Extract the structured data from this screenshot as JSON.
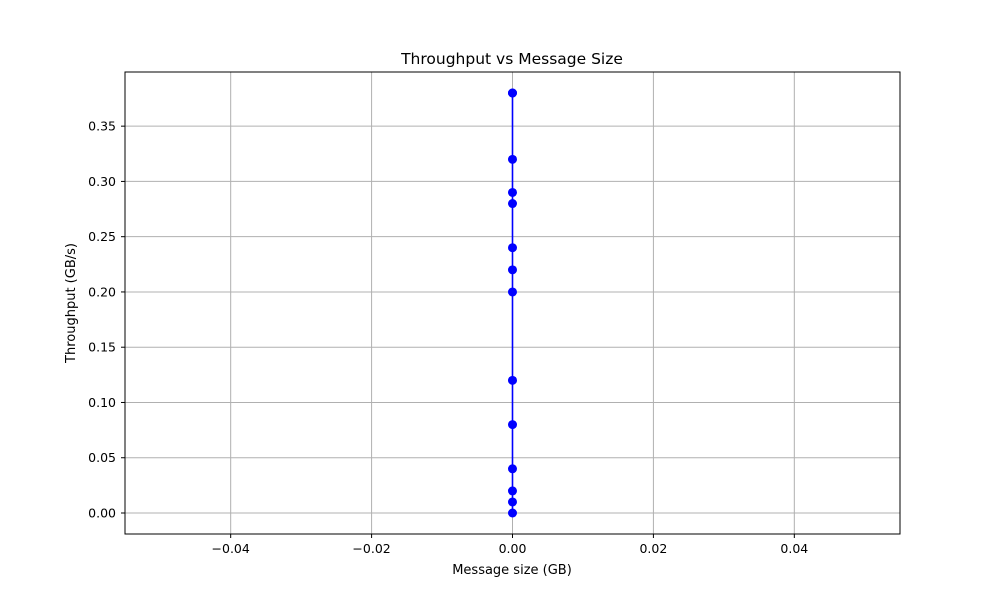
{
  "chart_data": {
    "type": "line",
    "title": "Throughput vs Message Size",
    "xlabel": "Message size (GB)",
    "ylabel": "Throughput (GB/s)",
    "xlim": [
      -0.055,
      0.055
    ],
    "ylim": [
      -0.019,
      0.399
    ],
    "xticks": [
      -0.04,
      -0.02,
      0.0,
      0.02,
      0.04
    ],
    "xtick_labels": [
      "−0.04",
      "−0.02",
      "0.00",
      "0.02",
      "0.04"
    ],
    "yticks": [
      0.0,
      0.05,
      0.1,
      0.15,
      0.2,
      0.25,
      0.3,
      0.35
    ],
    "ytick_labels": [
      "0.00",
      "0.05",
      "0.10",
      "0.15",
      "0.20",
      "0.25",
      "0.30",
      "0.35"
    ],
    "grid": true,
    "color": "#0000ff",
    "series": [
      {
        "x": [
          0,
          0,
          0,
          0,
          0,
          0,
          0,
          0,
          0,
          0,
          0,
          0,
          0,
          0
        ],
        "y": [
          0.0,
          0.01,
          0.02,
          0.04,
          0.08,
          0.12,
          0.2,
          0.22,
          0.24,
          0.28,
          0.29,
          0.32,
          0.38,
          0.38
        ]
      }
    ]
  }
}
